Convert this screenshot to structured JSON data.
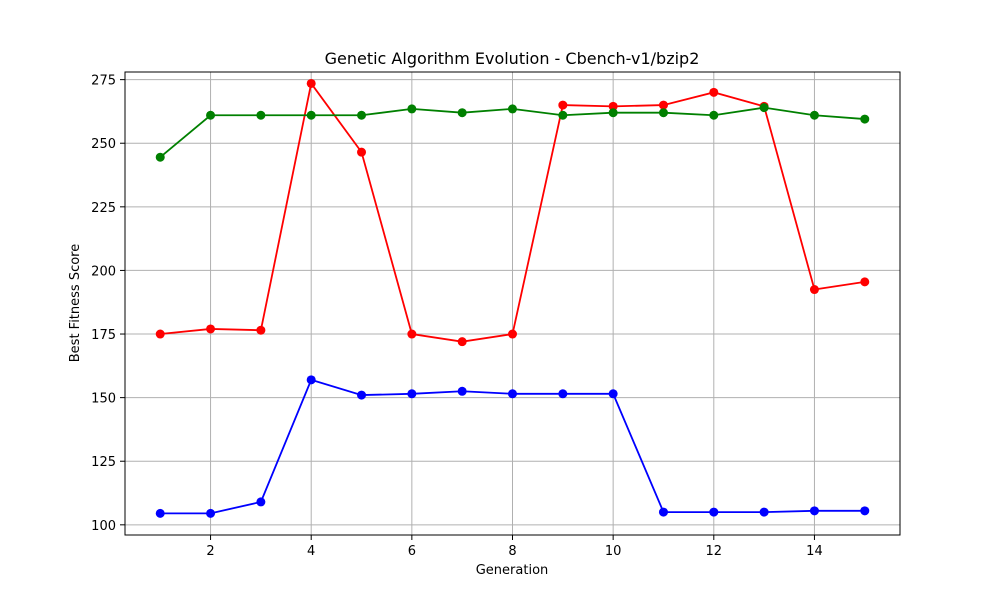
{
  "chart_data": {
    "type": "line",
    "title": "Genetic Algorithm Evolution - Cbench-v1/bzip2",
    "xlabel": "Generation",
    "ylabel": "Best Fitness Score",
    "xlim": [
      0.3,
      15.7
    ],
    "ylim": [
      96,
      278
    ],
    "x_ticks": [
      2,
      4,
      6,
      8,
      10,
      12,
      14
    ],
    "y_ticks": [
      100,
      125,
      150,
      175,
      200,
      225,
      250,
      275
    ],
    "grid": true,
    "x": [
      1,
      2,
      3,
      4,
      5,
      6,
      7,
      8,
      9,
      10,
      11,
      12,
      13,
      14,
      15
    ],
    "series": [
      {
        "color": "#ff0000",
        "values": [
          175,
          177,
          176.5,
          273.5,
          246.5,
          175,
          172,
          175,
          265,
          264.5,
          265,
          270,
          264.5,
          192.5,
          195.5
        ]
      },
      {
        "color": "#008000",
        "values": [
          244.5,
          261,
          261,
          261,
          261,
          263.5,
          262,
          263.5,
          261,
          262,
          262,
          261,
          264,
          261,
          259.5
        ]
      },
      {
        "color": "#0000ff",
        "values": [
          104.5,
          104.5,
          109,
          157,
          151,
          151.5,
          152.5,
          151.5,
          151.5,
          151.5,
          105,
          105,
          105,
          105.5,
          105.5
        ]
      }
    ]
  }
}
